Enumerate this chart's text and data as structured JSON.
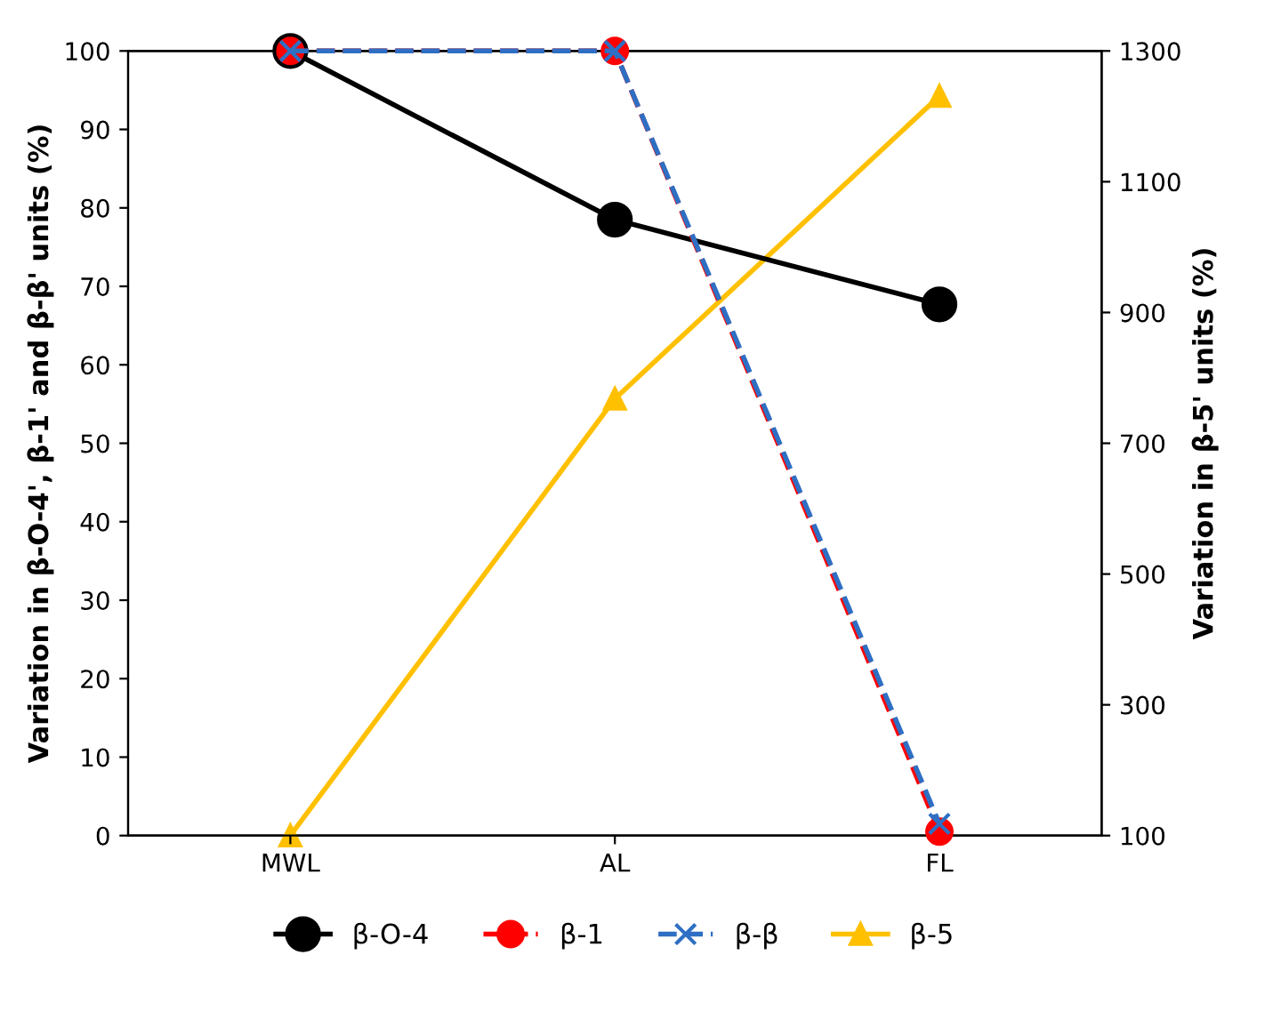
{
  "chart_data": {
    "type": "line",
    "categories": [
      "MWL",
      "AL",
      "FL"
    ],
    "ylabel": "Variation in β-O-4', β-1' and β-β' units (%)",
    "y2label": "Variation in β-5' units (%)",
    "ylim": [
      0,
      100
    ],
    "yticks": [
      0,
      10,
      20,
      30,
      40,
      50,
      60,
      70,
      80,
      90,
      100
    ],
    "y2lim": [
      100,
      1300
    ],
    "y2ticks": [
      100,
      300,
      500,
      700,
      900,
      1100,
      1300
    ],
    "grid": false,
    "legend": "bottom",
    "series": [
      {
        "name": "β-O-4",
        "color": "#000000",
        "values": [
          100,
          78.5,
          67.7
        ],
        "marker": "circle",
        "line_style": "solid"
      },
      {
        "name": "β-1",
        "color": "#ff0000",
        "values": [
          100,
          100,
          0.5
        ],
        "marker": "circle",
        "line_style": "dashed"
      },
      {
        "name": "β-β",
        "color": "#2e6fc4",
        "values": [
          100,
          100,
          1.5
        ],
        "marker": "cross",
        "line_style": "dashed"
      },
      {
        "name": "β-5",
        "color": "#ffc000",
        "values": [
          100,
          768,
          1231
        ],
        "marker": "triangle",
        "line_style": "solid",
        "axis": "y2"
      }
    ]
  }
}
